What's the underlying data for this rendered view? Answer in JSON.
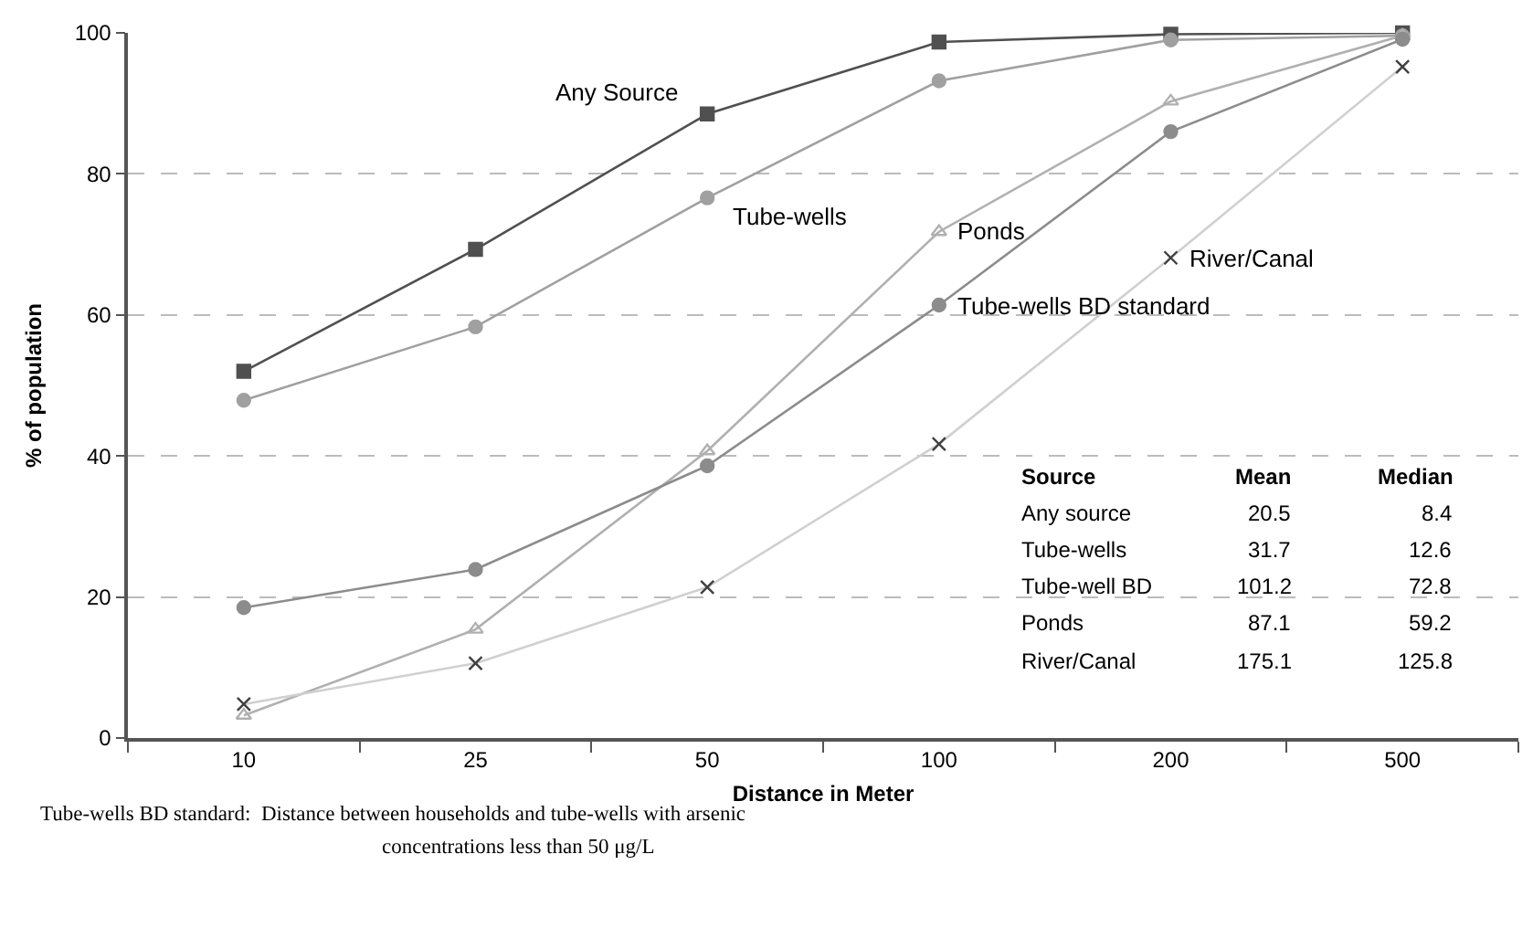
{
  "chart_data": {
    "type": "line",
    "xlabel": "Distance in Meter",
    "ylabel": "% of population",
    "categories": [
      "10",
      "25",
      "50",
      "100",
      "200",
      "500"
    ],
    "series": [
      {
        "name": "Any Source",
        "color": "#505050",
        "marker": "square",
        "values": [
          52,
          69.3,
          88.5,
          98.7,
          99.8,
          100
        ]
      },
      {
        "name": "Tube-wells",
        "color": "#a0a0a0",
        "marker": "circle",
        "values": [
          47.9,
          58.3,
          76.6,
          93.2,
          99,
          99.6
        ]
      },
      {
        "name": "Ponds",
        "color": "#b0b0b0",
        "marker": "triangle",
        "values": [
          3.2,
          15.4,
          40.7,
          71.8,
          90.3,
          99.6
        ]
      },
      {
        "name": "Tube-wells BD standard",
        "color": "#8c8c8c",
        "marker": "circle",
        "values": [
          18.5,
          23.9,
          38.6,
          61.4,
          86,
          99.1
        ]
      },
      {
        "name": "River/Canal",
        "color": "#d0d0d0",
        "marker": "cross",
        "values": [
          4.8,
          10.6,
          21.4,
          41.7,
          68.1,
          95.2
        ]
      }
    ],
    "ylim": [
      0,
      100
    ],
    "yticks": [
      0,
      20,
      40,
      60,
      80,
      100
    ],
    "grid": "y",
    "legend": false,
    "line_style": "solid",
    "annotations": [
      "Source",
      "Mean",
      "Median",
      "Any source",
      "20.5",
      "8.4",
      "Tube-wells",
      "31.7",
      "12.6",
      "Tube-well BD",
      "101.2",
      "72.8",
      "Ponds",
      "87.1",
      "59.2",
      "River/Canal",
      "175.1",
      "125.8",
      "Tube-wells BD standard:  Distance between households and tube-wells with arsenic",
      "concentrations less than 50 μg/L"
    ]
  }
}
